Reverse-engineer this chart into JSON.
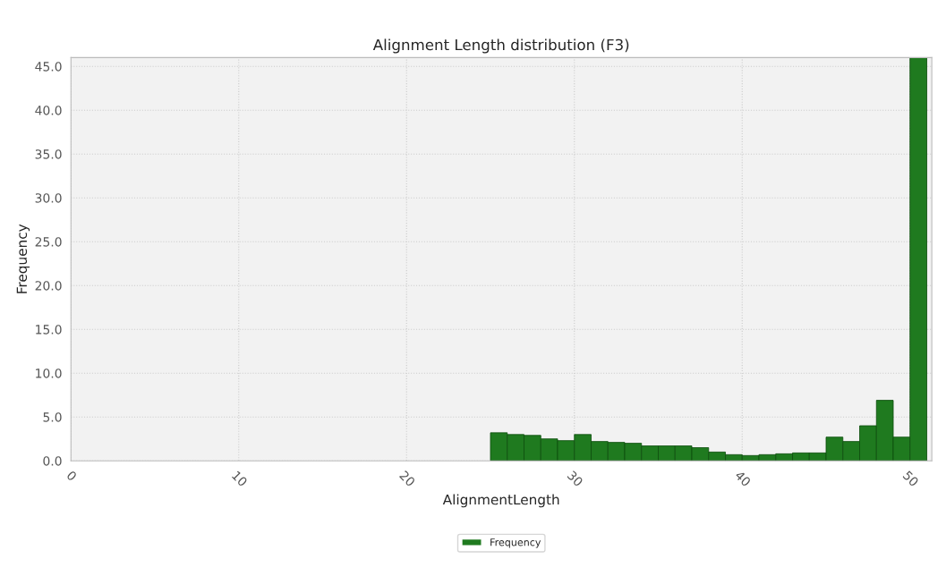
{
  "chart_data": {
    "type": "histogram",
    "title": "Alignment Length distribution (F3)",
    "xlabel": "AlignmentLength",
    "ylabel": "Frequency",
    "bins": [
      25,
      26,
      27,
      28,
      29,
      30,
      31,
      32,
      33,
      34,
      35,
      36,
      37,
      38,
      39,
      40,
      41,
      42,
      43,
      44,
      45,
      46,
      47,
      48,
      49,
      50,
      51
    ],
    "series": [
      {
        "name": "Frequency",
        "color": "#1f7a1f",
        "values": [
          3.2,
          3.0,
          2.9,
          2.5,
          2.3,
          3.0,
          2.2,
          2.1,
          2.0,
          1.7,
          1.7,
          1.7,
          1.5,
          1.0,
          0.7,
          0.6,
          0.7,
          0.8,
          0.9,
          0.9,
          2.7,
          2.2,
          4.0,
          6.9,
          2.7,
          46
        ]
      }
    ],
    "xlim": [
      0,
      51.3
    ],
    "ylim": [
      0,
      46
    ],
    "xticks": [
      0,
      10,
      20,
      30,
      40,
      50
    ],
    "yticks": [
      {
        "value": 0,
        "label": "0.0"
      },
      {
        "value": 5,
        "label": "5.0"
      },
      {
        "value": 10,
        "label": "10.0"
      },
      {
        "value": 15,
        "label": "15.0"
      },
      {
        "value": 20,
        "label": "20.0"
      },
      {
        "value": 25,
        "label": "25.0"
      },
      {
        "value": 30,
        "label": "30.0"
      },
      {
        "value": 35,
        "label": "35.0"
      },
      {
        "value": 40,
        "label": "40.0"
      },
      {
        "value": 45,
        "label": "45.0"
      }
    ],
    "grid": true,
    "legend": "bottom"
  }
}
